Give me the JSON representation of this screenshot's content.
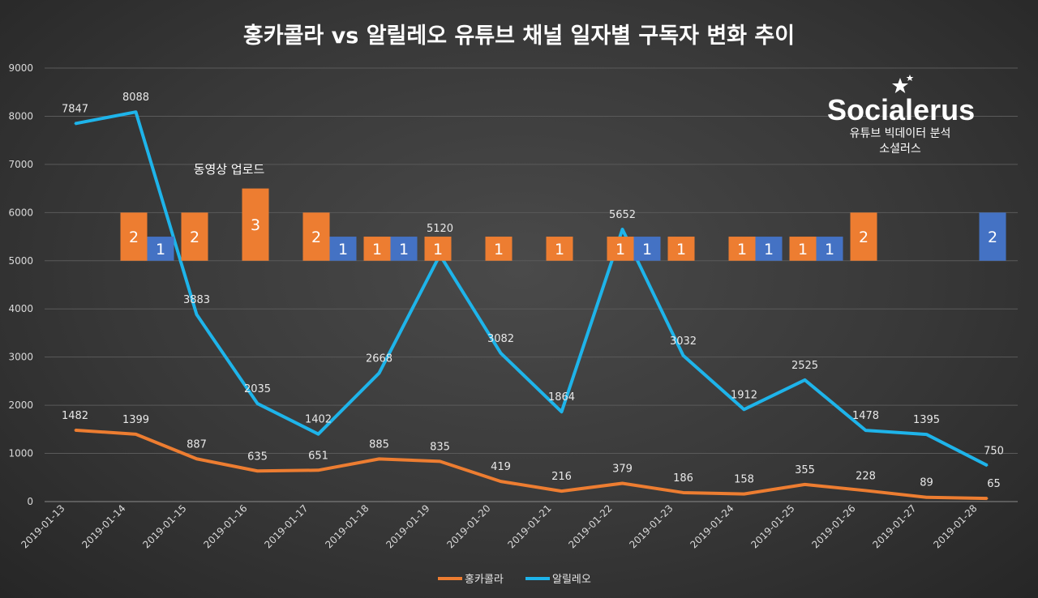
{
  "chart_data": {
    "type": "line",
    "title": "홍카콜라 vs 알릴레오  유튜브 채널 일자별 구독자 변화 추이",
    "x": [
      "2019-01-13",
      "2019-01-14",
      "2019-01-15",
      "2019-01-16",
      "2019-01-17",
      "2019-01-18",
      "2019-01-19",
      "2019-01-20",
      "2019-01-21",
      "2019-01-22",
      "2019-01-23",
      "2019-01-24",
      "2019-01-25",
      "2019-01-26",
      "2019-01-27",
      "2019-01-28"
    ],
    "ylim": [
      0,
      9000
    ],
    "yticks": [
      0,
      1000,
      2000,
      3000,
      4000,
      5000,
      6000,
      7000,
      8000,
      9000
    ],
    "grid": true,
    "legend_placement": "bottom",
    "series": [
      {
        "name": "홍카콜라",
        "color": "#ED7D31",
        "values": [
          1482,
          1399,
          887,
          635,
          651,
          885,
          835,
          419,
          216,
          379,
          186,
          158,
          355,
          228,
          89,
          65
        ]
      },
      {
        "name": "알릴레오",
        "color": "#1EB4EA",
        "values": [
          7847,
          8088,
          3883,
          2035,
          1402,
          2668,
          5120,
          3082,
          1864,
          5652,
          3032,
          1912,
          2525,
          1478,
          1395,
          750
        ]
      }
    ],
    "upload_bars": {
      "annotation": "동영상 업로드",
      "base": 5000,
      "unit": 500,
      "orange_color": "#ED7D31",
      "blue_color": "#4472C4",
      "orange_counts": [
        0,
        2,
        2,
        3,
        2,
        1,
        1,
        1,
        1,
        1,
        1,
        1,
        1,
        2,
        0,
        0
      ],
      "blue_counts": [
        0,
        1,
        0,
        0,
        1,
        1,
        0,
        0,
        0,
        1,
        0,
        1,
        1,
        0,
        0,
        2
      ]
    }
  },
  "logo": {
    "brand": "Socialerus",
    "line1": "유튜브 빅데이터 분석",
    "line2": "소셜러스"
  }
}
